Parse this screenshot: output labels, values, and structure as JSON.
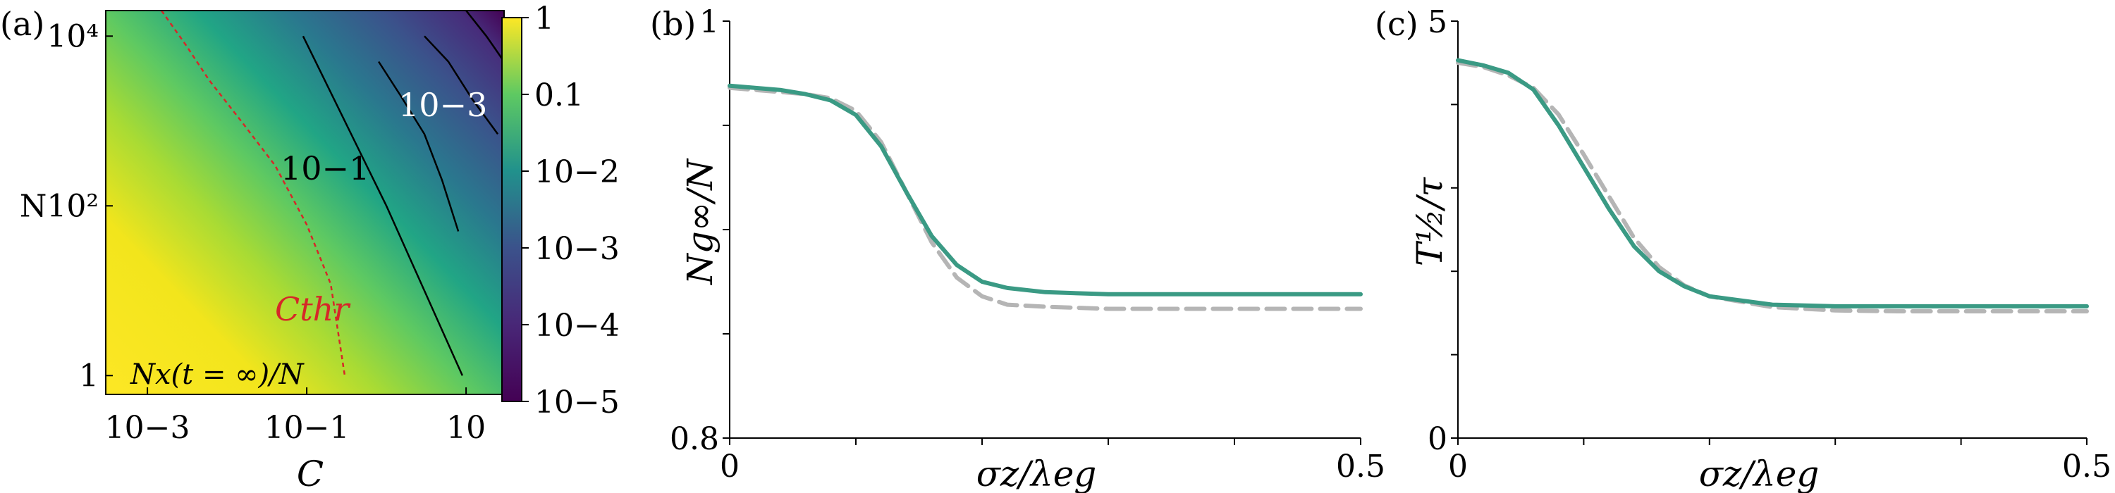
{
  "chart_data": [
    {
      "panel_label": "(a)",
      "type": "heatmap",
      "title": "",
      "xlabel": "C",
      "ylabel": "N",
      "x_scale": "log",
      "y_scale": "log",
      "xlim": [
        0.0003,
        30
      ],
      "ylim": [
        0.6,
        20000
      ],
      "x_ticks": [
        0.001,
        0.1,
        10
      ],
      "x_tick_labels": [
        "10−3",
        "10−1",
        "10"
      ],
      "y_ticks": [
        1,
        100,
        10000
      ],
      "y_tick_labels": [
        "1",
        "N10²",
        "10⁴"
      ],
      "colorbar": {
        "scale": "log",
        "colormap": "viridis",
        "range": [
          1e-05,
          1
        ],
        "ticks": [
          1,
          0.1,
          0.01,
          0.001,
          0.0001,
          1e-05
        ],
        "tick_labels": [
          "1",
          "0.1",
          "10−2",
          "10−3",
          "10−4",
          "10−5"
        ]
      },
      "annotation": "Nx(t = ∞)/N",
      "contours": [
        {
          "label": "",
          "color": "#000000",
          "points": [
            [
              9,
              1
            ],
            [
              3,
              10
            ],
            [
              1,
              100
            ],
            [
              0.3,
              1000
            ],
            [
              0.09,
              10000
            ]
          ]
        },
        {
          "label": "10−1",
          "color": "#000000",
          "points": [
            [
              0.8,
              5000
            ],
            [
              1.5,
              2000
            ],
            [
              3,
              700
            ],
            [
              5,
              200
            ],
            [
              8,
              50
            ]
          ]
        },
        {
          "label": "10−3",
          "color": "#000000",
          "points": [
            [
              3,
              10000
            ],
            [
              6,
              5000
            ],
            [
              12,
              1800
            ],
            [
              25,
              700
            ]
          ]
        },
        {
          "label": "",
          "color": "#000000",
          "points": [
            [
              10,
              20000
            ],
            [
              18,
              10000
            ],
            [
              30,
              5000
            ]
          ]
        }
      ],
      "threshold_curve": {
        "label": "Cthr",
        "color": "#d62728",
        "style": "dashed",
        "points": [
          [
            0.0015,
            20000
          ],
          [
            0.003,
            8000
          ],
          [
            0.006,
            3000
          ],
          [
            0.015,
            1000
          ],
          [
            0.04,
            300
          ],
          [
            0.1,
            60
          ],
          [
            0.2,
            12
          ],
          [
            0.3,
            1
          ]
        ]
      },
      "contour_labels": [
        {
          "text": "10−1",
          "color": "#000000"
        },
        {
          "text": "10−3",
          "color": "#ffffff"
        },
        {
          "text": "Cthr",
          "color": "#d62728"
        }
      ]
    },
    {
      "panel_label": "(b)",
      "type": "line",
      "title": "",
      "xlabel": "σz/λeg",
      "ylabel": "Ng∞/N",
      "xlim": [
        0,
        0.5
      ],
      "ylim": [
        0.8,
        1
      ],
      "x_ticks": [
        0,
        0.1,
        0.2,
        0.3,
        0.4,
        0.5
      ],
      "x_tick_labels": [
        "0",
        "",
        "",
        "",
        "",
        "0.5"
      ],
      "y_ticks": [
        0.8,
        0.85,
        0.9,
        0.95,
        1
      ],
      "y_tick_labels": [
        "0.8",
        "",
        "",
        "",
        "1"
      ],
      "series": [
        {
          "color": "#3a9a84",
          "style": "solid",
          "x": [
            0,
            0.02,
            0.04,
            0.06,
            0.08,
            0.1,
            0.12,
            0.14,
            0.16,
            0.18,
            0.2,
            0.22,
            0.25,
            0.3,
            0.35,
            0.4,
            0.45,
            0.5
          ],
          "y": [
            0.969,
            0.968,
            0.967,
            0.965,
            0.962,
            0.955,
            0.94,
            0.918,
            0.897,
            0.883,
            0.875,
            0.872,
            0.87,
            0.869,
            0.869,
            0.869,
            0.869,
            0.869
          ]
        },
        {
          "color": "#b5b5b5",
          "style": "dashed",
          "x": [
            0,
            0.02,
            0.04,
            0.06,
            0.08,
            0.1,
            0.12,
            0.14,
            0.16,
            0.18,
            0.2,
            0.22,
            0.25,
            0.3,
            0.35,
            0.4,
            0.45,
            0.5
          ],
          "y": [
            0.968,
            0.967,
            0.966,
            0.965,
            0.963,
            0.957,
            0.942,
            0.918,
            0.894,
            0.877,
            0.868,
            0.864,
            0.863,
            0.862,
            0.862,
            0.862,
            0.862,
            0.862
          ]
        }
      ]
    },
    {
      "panel_label": "(c)",
      "type": "line",
      "title": "",
      "xlabel": "σz/λeg",
      "ylabel": "T½/τ",
      "xlim": [
        0,
        0.5
      ],
      "ylim": [
        0,
        5
      ],
      "x_ticks": [
        0,
        0.1,
        0.2,
        0.3,
        0.4,
        0.5
      ],
      "x_tick_labels": [
        "0",
        "",
        "",
        "",
        "",
        "0.5"
      ],
      "y_ticks": [
        0,
        1,
        2,
        3,
        4,
        5
      ],
      "y_tick_labels": [
        "0",
        "",
        "",
        "",
        "",
        "5"
      ],
      "series": [
        {
          "color": "#3a9a84",
          "style": "solid",
          "x": [
            0,
            0.02,
            0.04,
            0.06,
            0.08,
            0.1,
            0.12,
            0.14,
            0.16,
            0.18,
            0.2,
            0.25,
            0.3,
            0.35,
            0.4,
            0.45,
            0.5
          ],
          "y": [
            4.53,
            4.47,
            4.38,
            4.18,
            3.75,
            3.25,
            2.75,
            2.3,
            2.0,
            1.82,
            1.7,
            1.6,
            1.58,
            1.58,
            1.58,
            1.58,
            1.58
          ]
        },
        {
          "color": "#b5b5b5",
          "style": "dashed",
          "x": [
            0,
            0.02,
            0.04,
            0.06,
            0.08,
            0.1,
            0.12,
            0.14,
            0.16,
            0.18,
            0.2,
            0.25,
            0.3,
            0.35,
            0.4,
            0.45,
            0.5
          ],
          "y": [
            4.5,
            4.45,
            4.35,
            4.2,
            3.88,
            3.4,
            2.9,
            2.4,
            2.05,
            1.83,
            1.7,
            1.57,
            1.53,
            1.52,
            1.52,
            1.52,
            1.52
          ]
        }
      ]
    }
  ]
}
